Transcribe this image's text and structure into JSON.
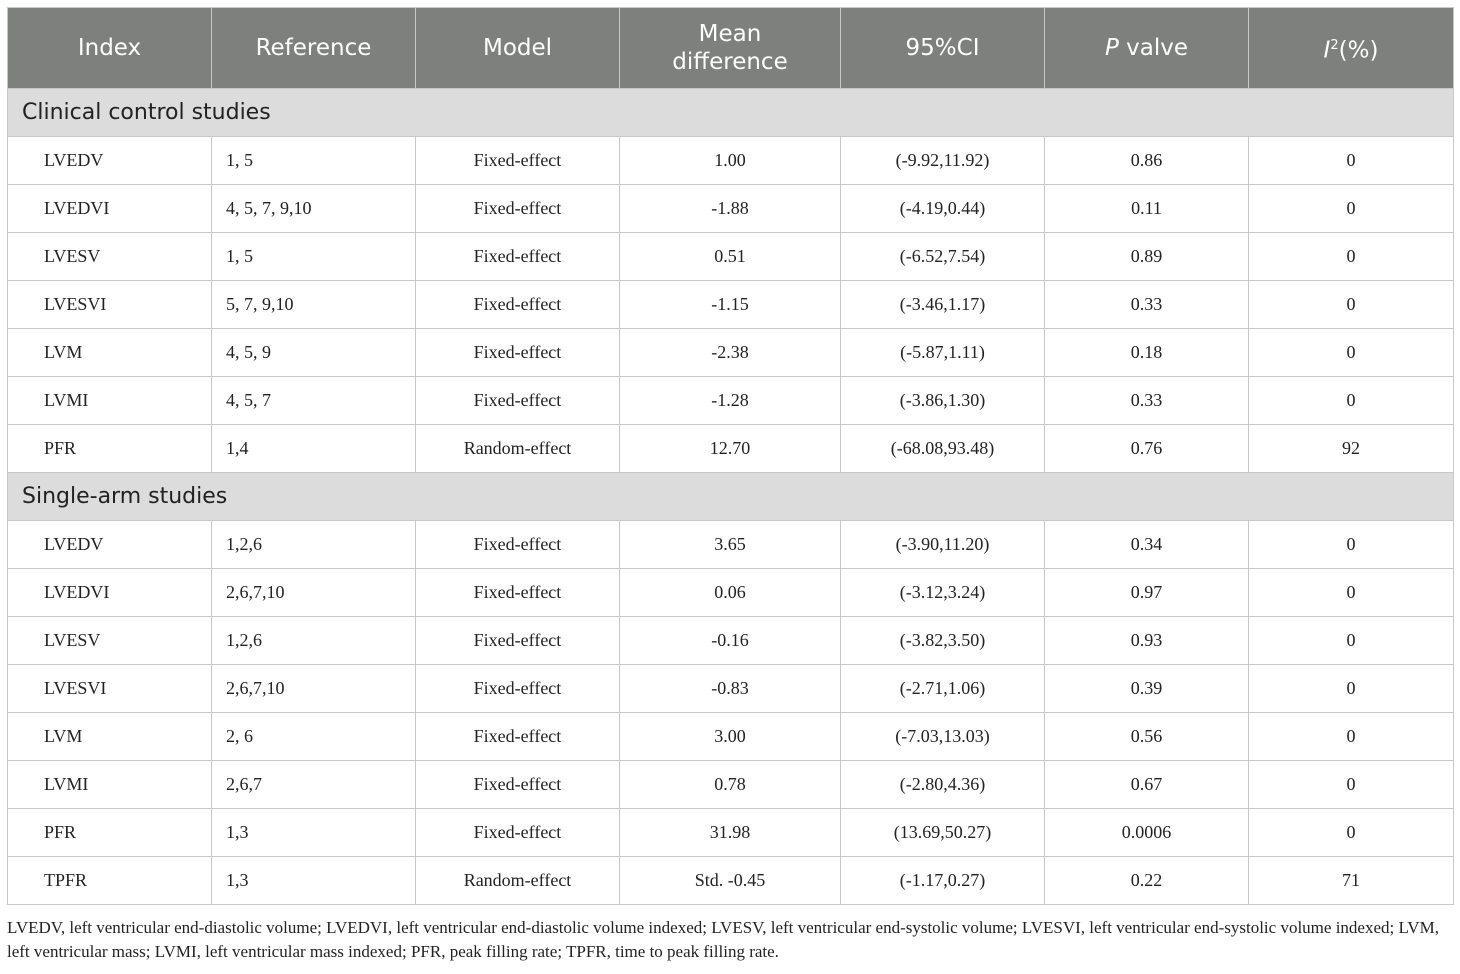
{
  "headers": {
    "index": "Index",
    "reference": "Reference",
    "model": "Model",
    "mean_difference": "Mean difference",
    "ci": "95%CI",
    "p_italic": "P",
    "p_rest": " valve",
    "i2_italic": "I",
    "i2_sup": "2",
    "i2_rest": "(%)"
  },
  "sections": [
    {
      "title": "Clinical control studies",
      "rows": [
        {
          "index": "LVEDV",
          "reference": "1, 5",
          "model": "Fixed-effect",
          "mean_difference": "1.00",
          "ci": "(-9.92,11.92)",
          "p": "0.86",
          "i2": "0"
        },
        {
          "index": "LVEDVI",
          "reference": "4, 5, 7, 9,10",
          "model": "Fixed-effect",
          "mean_difference": "-1.88",
          "ci": "(-4.19,0.44)",
          "p": "0.11",
          "i2": "0"
        },
        {
          "index": "LVESV",
          "reference": "1, 5",
          "model": "Fixed-effect",
          "mean_difference": "0.51",
          "ci": "(-6.52,7.54)",
          "p": "0.89",
          "i2": "0"
        },
        {
          "index": "LVESVI",
          "reference": "5, 7, 9,10",
          "model": "Fixed-effect",
          "mean_difference": "-1.15",
          "ci": "(-3.46,1.17)",
          "p": "0.33",
          "i2": "0"
        },
        {
          "index": "LVM",
          "reference": "4, 5, 9",
          "model": "Fixed-effect",
          "mean_difference": "-2.38",
          "ci": "(-5.87,1.11)",
          "p": "0.18",
          "i2": "0"
        },
        {
          "index": "LVMI",
          "reference": "4, 5, 7",
          "model": "Fixed-effect",
          "mean_difference": "-1.28",
          "ci": "(-3.86,1.30)",
          "p": "0.33",
          "i2": "0"
        },
        {
          "index": "PFR",
          "reference": "1,4",
          "model": "Random-effect",
          "mean_difference": "12.70",
          "ci": "(-68.08,93.48)",
          "p": "0.76",
          "i2": "92"
        }
      ]
    },
    {
      "title": "Single-arm studies",
      "rows": [
        {
          "index": "LVEDV",
          "reference": "1,2,6",
          "model": "Fixed-effect",
          "mean_difference": "3.65",
          "ci": "(-3.90,11.20)",
          "p": "0.34",
          "i2": "0"
        },
        {
          "index": "LVEDVI",
          "reference": "2,6,7,10",
          "model": "Fixed-effect",
          "mean_difference": "0.06",
          "ci": "(-3.12,3.24)",
          "p": "0.97",
          "i2": "0"
        },
        {
          "index": "LVESV",
          "reference": "1,2,6",
          "model": "Fixed-effect",
          "mean_difference": "-0.16",
          "ci": "(-3.82,3.50)",
          "p": "0.93",
          "i2": "0"
        },
        {
          "index": "LVESVI",
          "reference": "2,6,7,10",
          "model": "Fixed-effect",
          "mean_difference": "-0.83",
          "ci": "(-2.71,1.06)",
          "p": "0.39",
          "i2": "0"
        },
        {
          "index": "LVM",
          "reference": "2, 6",
          "model": "Fixed-effect",
          "mean_difference": "3.00",
          "ci": "(-7.03,13.03)",
          "p": "0.56",
          "i2": "0"
        },
        {
          "index": "LVMI",
          "reference": "2,6,7",
          "model": "Fixed-effect",
          "mean_difference": "0.78",
          "ci": "(-2.80,4.36)",
          "p": "0.67",
          "i2": "0"
        },
        {
          "index": "PFR",
          "reference": "1,3",
          "model": "Fixed-effect",
          "mean_difference": "31.98",
          "ci": "(13.69,50.27)",
          "p": "0.0006",
          "i2": "0"
        },
        {
          "index": "TPFR",
          "reference": "1,3",
          "model": "Random-effect",
          "mean_difference": "Std. -0.45",
          "ci": "(-1.17,0.27)",
          "p": "0.22",
          "i2": "71"
        }
      ]
    }
  ],
  "footnote": "LVEDV, left ventricular end-diastolic volume; LVEDVI, left ventricular end-diastolic volume indexed; LVESV, left ventricular end-systolic volume; LVESVI, left ventricular end-systolic volume indexed; LVM, left ventricular mass; LVMI, left ventricular mass indexed; PFR, peak filling rate; TPFR, time to peak filling rate."
}
